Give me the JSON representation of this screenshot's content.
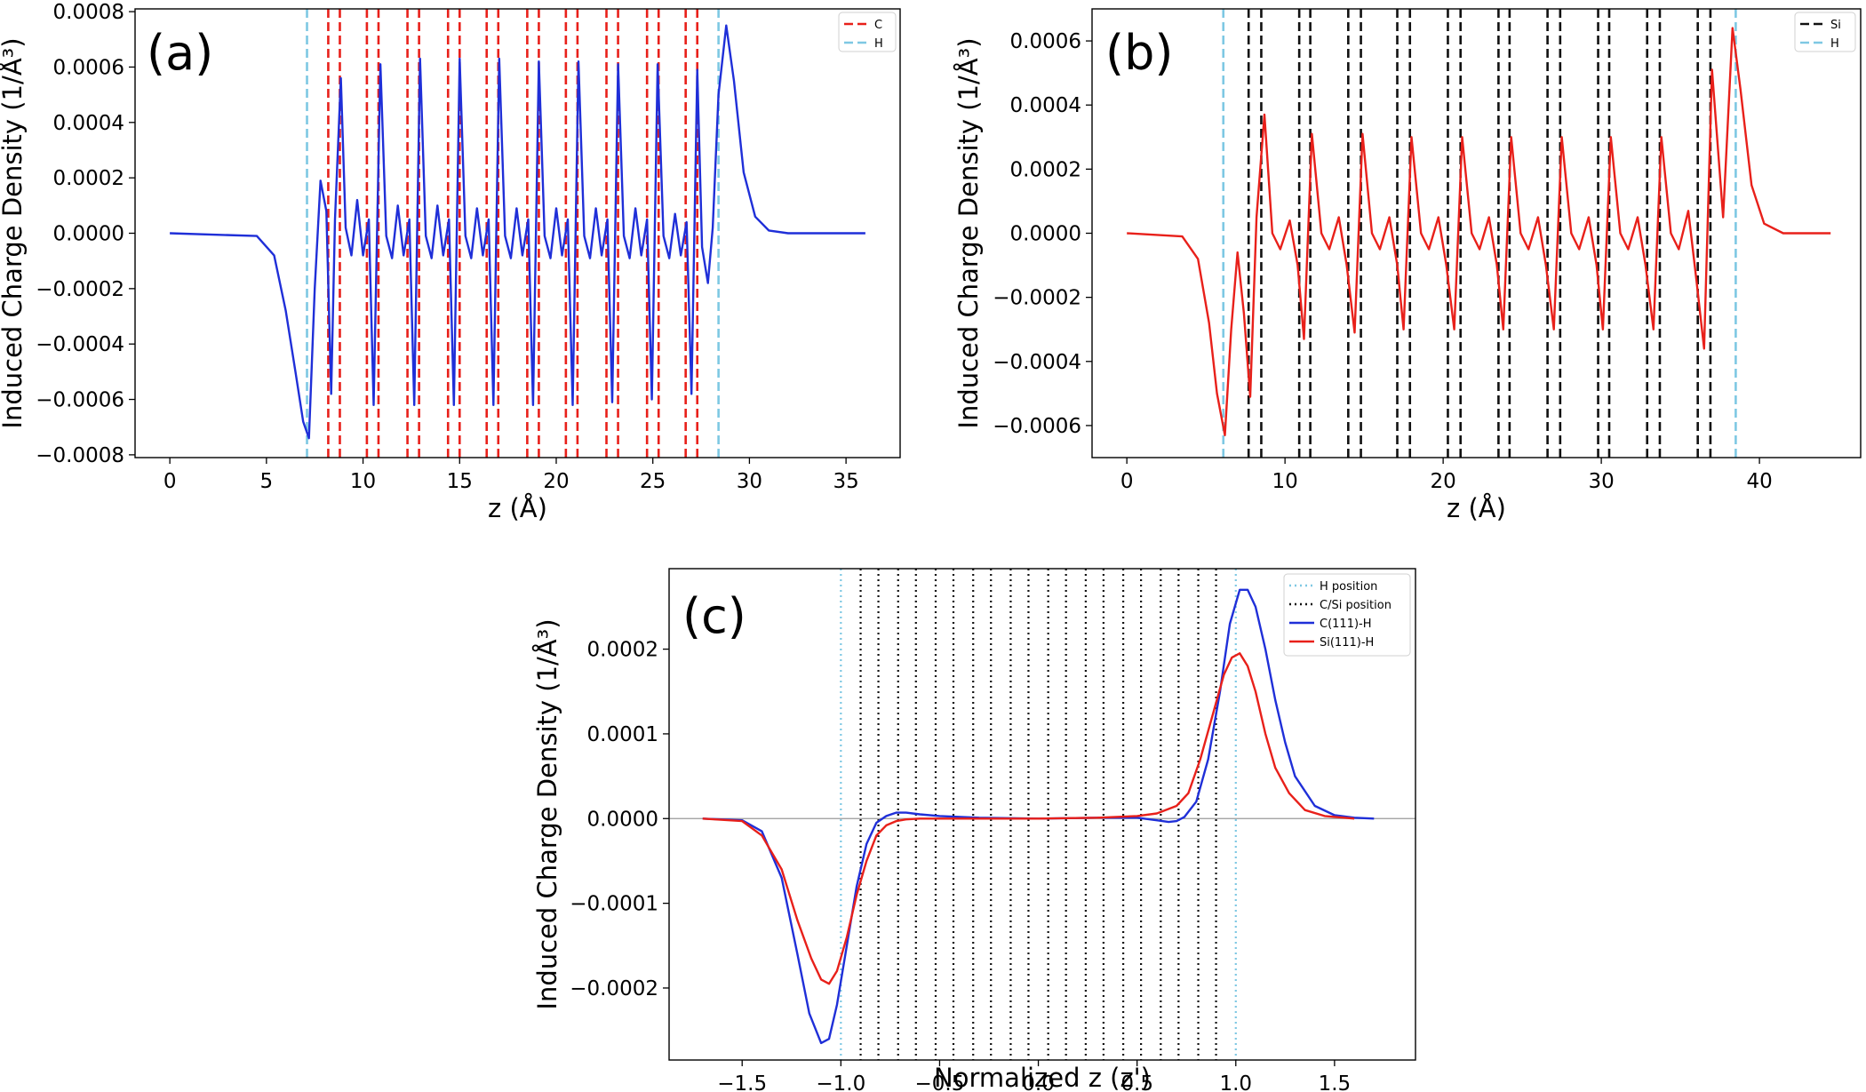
{
  "chart_data": [
    {
      "panel": "(a)",
      "type": "line",
      "xlabel": "z (Å)",
      "ylabel": "Induced Charge Density (1/Å³)",
      "xlim": [
        -1.8,
        37.8
      ],
      "ylim": [
        -0.00081,
        0.00081
      ],
      "xticks": [
        0,
        5,
        10,
        15,
        20,
        25,
        30,
        35
      ],
      "xtick_labels": [
        "0",
        "5",
        "10",
        "15",
        "20",
        "25",
        "30",
        "35"
      ],
      "yticks": [
        -0.0008,
        -0.0006,
        -0.0004,
        -0.0002,
        0.0,
        0.0002,
        0.0004,
        0.0006,
        0.0008
      ],
      "ytick_labels": [
        "−0.0008",
        "−0.0006",
        "−0.0004",
        "−0.0002",
        "0.0000",
        "0.0002",
        "0.0004",
        "0.0006",
        "0.0008"
      ],
      "legend": [
        {
          "label": "C",
          "color": "#e8201a",
          "style": "dashed"
        },
        {
          "label": "H",
          "color": "#7ec8e3",
          "style": "dashed"
        }
      ],
      "legend_position": "top-right",
      "vlines": [
        {
          "name": "H",
          "color": "#7ec8e3",
          "x": [
            7.1,
            28.4
          ]
        },
        {
          "name": "C",
          "color": "#e8201a",
          "x": [
            8.2,
            8.8,
            10.2,
            10.8,
            12.3,
            12.9,
            14.4,
            15.0,
            16.4,
            17.0,
            18.5,
            19.1,
            20.5,
            21.1,
            22.6,
            23.2,
            24.7,
            25.3,
            26.7,
            27.3
          ]
        }
      ],
      "series": [
        {
          "color": "#1f2fd8",
          "x": [
            0,
            4.5,
            5.4,
            6.0,
            6.5,
            6.9,
            7.2,
            7.5,
            7.8,
            8.1,
            8.35,
            8.55,
            8.85,
            9.1,
            9.4,
            9.7,
            10.0,
            10.3,
            10.55,
            10.9,
            11.2,
            11.5,
            11.8,
            12.1,
            12.4,
            12.65,
            12.95,
            13.25,
            13.55,
            13.85,
            14.15,
            14.45,
            14.7,
            15.0,
            15.3,
            15.6,
            15.9,
            16.2,
            16.5,
            16.75,
            17.05,
            17.35,
            17.65,
            17.95,
            18.25,
            18.55,
            18.8,
            19.1,
            19.4,
            19.7,
            20.0,
            20.3,
            20.6,
            20.85,
            21.15,
            21.45,
            21.75,
            22.05,
            22.35,
            22.65,
            22.9,
            23.2,
            23.5,
            23.8,
            24.1,
            24.4,
            24.7,
            24.95,
            25.25,
            25.55,
            25.85,
            26.15,
            26.45,
            26.75,
            27.0,
            27.3,
            27.55,
            27.85,
            28.1,
            28.4,
            28.8,
            29.2,
            29.7,
            30.3,
            31.0,
            32.0,
            36.0
          ],
          "y": [
            0,
            -1e-05,
            -8e-05,
            -0.00028,
            -0.0005,
            -0.00068,
            -0.00074,
            -0.0002,
            0.00019,
            8e-05,
            -0.00058,
            5e-05,
            0.00056,
            2e-05,
            -8e-05,
            0.00012,
            -8e-05,
            5e-05,
            -0.00062,
            0.00061,
            -1e-05,
            -9e-05,
            0.0001,
            -8e-05,
            5e-05,
            -0.00062,
            0.00063,
            -1e-05,
            -9e-05,
            0.0001,
            -8e-05,
            5e-05,
            -0.00062,
            0.00063,
            -1e-05,
            -9e-05,
            9e-05,
            -8e-05,
            5e-05,
            -0.00062,
            0.00063,
            -1e-05,
            -9e-05,
            9e-05,
            -8e-05,
            5e-05,
            -0.00062,
            0.00062,
            -1e-05,
            -9e-05,
            9e-05,
            -8e-05,
            5e-05,
            -0.00062,
            0.00062,
            -1e-05,
            -9e-05,
            9e-05,
            -8e-05,
            5e-05,
            -0.00061,
            0.00061,
            -1e-05,
            -9e-05,
            9e-05,
            -8e-05,
            5e-05,
            -0.0006,
            0.00061,
            -1e-05,
            -9e-05,
            7e-05,
            -8e-05,
            4e-05,
            -0.00058,
            0.00059,
            -5e-05,
            -0.00018,
            2e-05,
            0.0005,
            0.00075,
            0.00055,
            0.00022,
            6e-05,
            1e-05,
            0.0,
            0.0
          ]
        }
      ]
    },
    {
      "panel": "(b)",
      "type": "line",
      "xlabel": "z (Å)",
      "ylabel": "Induced Charge Density (1/Å³)",
      "xlim": [
        -2.2,
        46.4
      ],
      "ylim": [
        -0.0007,
        0.0007
      ],
      "xticks": [
        0,
        10,
        20,
        30,
        40
      ],
      "xtick_labels": [
        "0",
        "10",
        "20",
        "30",
        "40"
      ],
      "yticks": [
        -0.0006,
        -0.0004,
        -0.0002,
        0.0,
        0.0002,
        0.0004,
        0.0006
      ],
      "ytick_labels": [
        "−0.0006",
        "−0.0004",
        "−0.0002",
        "0.0000",
        "0.0002",
        "0.0004",
        "0.0006"
      ],
      "legend": [
        {
          "label": "Si",
          "color": "#111111",
          "style": "dashed"
        },
        {
          "label": "H",
          "color": "#7ec8e3",
          "style": "dashed"
        }
      ],
      "legend_position": "top-right",
      "vlines": [
        {
          "name": "H",
          "color": "#7ec8e3",
          "x": [
            6.1,
            38.5
          ]
        },
        {
          "name": "Si",
          "color": "#111111",
          "x": [
            7.7,
            8.5,
            10.9,
            11.6,
            14.0,
            14.8,
            17.1,
            17.9,
            20.3,
            21.1,
            23.5,
            24.2,
            26.6,
            27.4,
            29.8,
            30.5,
            32.9,
            33.7,
            36.1,
            36.9
          ]
        }
      ],
      "series": [
        {
          "color": "#e8201a",
          "x": [
            0,
            3.5,
            4.5,
            5.2,
            5.7,
            6.2,
            6.6,
            7.0,
            7.4,
            7.8,
            8.2,
            8.7,
            9.2,
            9.7,
            10.3,
            10.8,
            11.2,
            11.7,
            12.3,
            12.8,
            13.4,
            13.9,
            14.4,
            14.9,
            15.5,
            16.0,
            16.6,
            17.1,
            17.5,
            18.0,
            18.6,
            19.1,
            19.7,
            20.2,
            20.7,
            21.2,
            21.8,
            22.3,
            22.9,
            23.4,
            23.8,
            24.3,
            24.9,
            25.4,
            26.0,
            26.5,
            27.0,
            27.5,
            28.1,
            28.6,
            29.2,
            29.7,
            30.1,
            30.6,
            31.2,
            31.7,
            32.3,
            32.8,
            33.3,
            33.8,
            34.4,
            34.9,
            35.5,
            36.0,
            36.5,
            37.0,
            37.7,
            38.3,
            38.8,
            39.5,
            40.3,
            41.5,
            44.5
          ],
          "y": [
            0,
            -1e-05,
            -8e-05,
            -0.00028,
            -0.0005,
            -0.00063,
            -0.0003,
            -6e-05,
            -0.00025,
            -0.00051,
            5e-05,
            0.00037,
            0.0,
            -5e-05,
            4e-05,
            -0.0001,
            -0.00033,
            0.00031,
            0.0,
            -5e-05,
            5e-05,
            -0.0001,
            -0.00031,
            0.00031,
            0.0,
            -5e-05,
            5e-05,
            -0.0001,
            -0.0003,
            0.0003,
            0.0,
            -5e-05,
            5e-05,
            -0.0001,
            -0.0003,
            0.0003,
            0.0,
            -5e-05,
            5e-05,
            -0.0001,
            -0.0003,
            0.0003,
            0.0,
            -5e-05,
            5e-05,
            -0.0001,
            -0.0003,
            0.0003,
            0.0,
            -5e-05,
            5e-05,
            -0.0001,
            -0.0003,
            0.0003,
            0.0,
            -5e-05,
            5e-05,
            -0.0001,
            -0.0003,
            0.0003,
            0.0,
            -5e-05,
            7e-05,
            -0.00014,
            -0.00036,
            0.00051,
            5e-05,
            0.00064,
            0.00045,
            0.00015,
            3e-05,
            0.0,
            0.0
          ]
        }
      ]
    },
    {
      "panel": "(c)",
      "type": "line",
      "xlabel": "Normalized z (z')",
      "ylabel": "Induced Charge Density (1/Å³)",
      "xlim": [
        -1.87,
        1.91
      ],
      "ylim": [
        -0.000285,
        0.000295
      ],
      "xticks": [
        -1.5,
        -1.0,
        -0.5,
        0.0,
        0.5,
        1.0,
        1.5
      ],
      "xtick_labels": [
        "−1.5",
        "−1.0",
        "−0.5",
        "0.0",
        "0.5",
        "1.0",
        "1.5"
      ],
      "yticks": [
        -0.0002,
        -0.0001,
        0.0,
        0.0001,
        0.0002
      ],
      "ytick_labels": [
        "−0.0002",
        "−0.0001",
        "0.0000",
        "0.0001",
        "0.0002"
      ],
      "legend": [
        {
          "label": "H position",
          "color": "#7ec8e3",
          "style": "dotted"
        },
        {
          "label": "C/Si position",
          "color": "#111111",
          "style": "dotted"
        },
        {
          "label": "C(111)-H",
          "color": "#1f2fd8",
          "style": "solid"
        },
        {
          "label": "Si(111)-H",
          "color": "#e8201a",
          "style": "solid"
        }
      ],
      "legend_position": "top-right",
      "vlines": [
        {
          "name": "H position",
          "color": "#7ec8e3",
          "x": [
            -1.0,
            1.0
          ]
        },
        {
          "name": "C/Si position",
          "color": "#111111",
          "x": [
            -0.9,
            -0.81,
            -0.71,
            -0.62,
            -0.52,
            -0.43,
            -0.33,
            -0.24,
            -0.14,
            -0.05,
            0.05,
            0.14,
            0.24,
            0.33,
            0.43,
            0.52,
            0.62,
            0.71,
            0.81,
            0.9
          ]
        }
      ],
      "hline": 0,
      "series": [
        {
          "name": "C(111)-H",
          "color": "#1f2fd8",
          "x": [
            -1.7,
            -1.5,
            -1.4,
            -1.3,
            -1.22,
            -1.16,
            -1.1,
            -1.06,
            -1.02,
            -0.97,
            -0.92,
            -0.87,
            -0.82,
            -0.77,
            -0.72,
            -0.67,
            -0.6,
            -0.5,
            -0.3,
            0.0,
            0.3,
            0.5,
            0.6,
            0.66,
            0.7,
            0.74,
            0.8,
            0.86,
            0.92,
            0.97,
            1.02,
            1.06,
            1.1,
            1.15,
            1.2,
            1.25,
            1.3,
            1.4,
            1.5,
            1.6,
            1.7
          ],
          "y": [
            0,
            -2e-06,
            -1.5e-05,
            -7e-05,
            -0.00016,
            -0.00023,
            -0.000265,
            -0.00026,
            -0.00022,
            -0.00015,
            -8e-05,
            -3e-05,
            -5e-06,
            3e-06,
            7e-06,
            7e-06,
            5e-06,
            3e-06,
            1e-06,
            0.0,
            1e-06,
            1e-06,
            -2e-06,
            -4e-06,
            -3e-06,
            2e-06,
            2e-05,
            7e-05,
            0.00015,
            0.00023,
            0.00027,
            0.00027,
            0.00025,
            0.0002,
            0.00014,
            9e-05,
            5e-05,
            1.5e-05,
            4e-06,
            1e-06,
            0
          ]
        },
        {
          "name": "Si(111)-H",
          "color": "#e8201a",
          "x": [
            -1.7,
            -1.5,
            -1.4,
            -1.3,
            -1.22,
            -1.15,
            -1.1,
            -1.06,
            -1.02,
            -0.97,
            -0.92,
            -0.87,
            -0.82,
            -0.77,
            -0.72,
            -0.67,
            -0.6,
            -0.5,
            -0.3,
            0.0,
            0.3,
            0.5,
            0.6,
            0.7,
            0.76,
            0.82,
            0.88,
            0.94,
            0.98,
            1.02,
            1.06,
            1.1,
            1.15,
            1.2,
            1.27,
            1.35,
            1.45,
            1.55,
            1.6
          ],
          "y": [
            0,
            -3e-06,
            -2e-05,
            -6e-05,
            -0.00012,
            -0.000165,
            -0.00019,
            -0.000195,
            -0.00018,
            -0.00014,
            -9e-05,
            -5e-05,
            -2e-05,
            -8e-06,
            -3e-06,
            -1e-06,
            0,
            0,
            0,
            0,
            1e-06,
            3e-06,
            6e-06,
            1.5e-05,
            3e-05,
            7e-05,
            0.00012,
            0.00017,
            0.00019,
            0.000195,
            0.00018,
            0.00015,
            0.0001,
            6e-05,
            3e-05,
            1e-05,
            3e-06,
            1e-06,
            0
          ]
        }
      ]
    }
  ]
}
